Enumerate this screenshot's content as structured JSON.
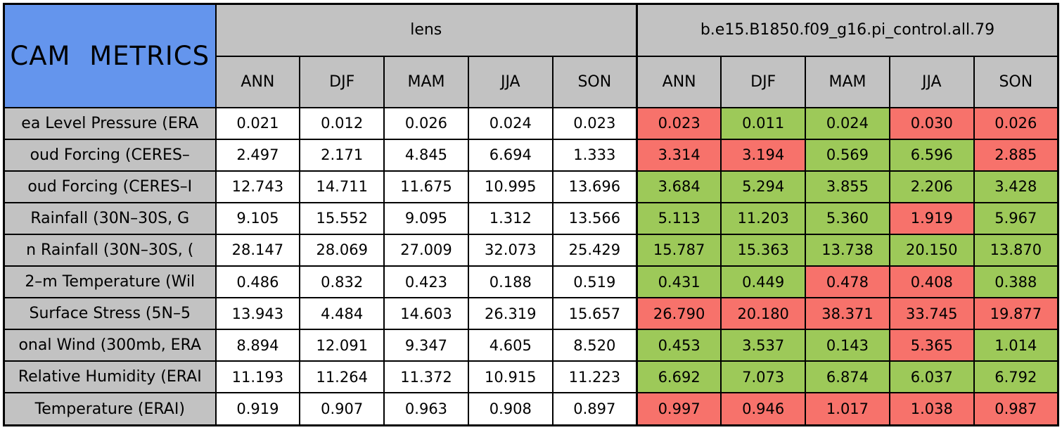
{
  "title": "CAM METRICS",
  "colors": {
    "title_bg": "#6495ED",
    "header_bg": "#C2C2C2",
    "neutral_bg": "#FFFFFF",
    "worse_bg": "#F7726B",
    "better_bg": "#9DC959",
    "border": "#000000"
  },
  "chart_data": {
    "type": "table",
    "title": "CAM METRICS",
    "column_groups": [
      {
        "label": "lens",
        "seasons": [
          "ANN",
          "DJF",
          "MAM",
          "JJA",
          "SON"
        ]
      },
      {
        "label": "b.e15.B1850.f09_g16.pi_control.all.79",
        "seasons": [
          "ANN",
          "DJF",
          "MAM",
          "JJA",
          "SON"
        ]
      }
    ],
    "value_format": "3-decimals",
    "cell_color_legend": {
      "better": "#9DC959",
      "worse": "#F7726B",
      "lens_reference": "#FFFFFF"
    },
    "rows": [
      {
        "label": "ea Level Pressure (ERA",
        "lens": [
          0.021,
          0.012,
          0.026,
          0.024,
          0.023
        ],
        "control": [
          0.023,
          0.011,
          0.024,
          0.03,
          0.026
        ],
        "control_status": [
          "worse",
          "better",
          "better",
          "worse",
          "worse"
        ]
      },
      {
        "label": "oud Forcing (CERES–",
        "lens": [
          2.497,
          2.171,
          4.845,
          6.694,
          1.333
        ],
        "control": [
          3.314,
          3.194,
          0.569,
          6.596,
          2.885
        ],
        "control_status": [
          "worse",
          "worse",
          "better",
          "better",
          "worse"
        ]
      },
      {
        "label": "oud Forcing (CERES–I",
        "lens": [
          12.743,
          14.711,
          11.675,
          10.995,
          13.696
        ],
        "control": [
          3.684,
          5.294,
          3.855,
          2.206,
          3.428
        ],
        "control_status": [
          "better",
          "better",
          "better",
          "better",
          "better"
        ]
      },
      {
        "label": "Rainfall (30N–30S, G",
        "lens": [
          9.105,
          15.552,
          9.095,
          1.312,
          13.566
        ],
        "control": [
          5.113,
          11.203,
          5.36,
          1.919,
          5.967
        ],
        "control_status": [
          "better",
          "better",
          "better",
          "worse",
          "better"
        ]
      },
      {
        "label": "n Rainfall (30N–30S, (",
        "lens": [
          28.147,
          28.069,
          27.009,
          32.073,
          25.429
        ],
        "control": [
          15.787,
          15.363,
          13.738,
          20.15,
          13.87
        ],
        "control_status": [
          "better",
          "better",
          "better",
          "better",
          "better"
        ]
      },
      {
        "label": "2–m Temperature (Wil",
        "lens": [
          0.486,
          0.832,
          0.423,
          0.188,
          0.519
        ],
        "control": [
          0.431,
          0.449,
          0.478,
          0.408,
          0.388
        ],
        "control_status": [
          "better",
          "better",
          "worse",
          "worse",
          "better"
        ]
      },
      {
        "label": "Surface Stress (5N–5",
        "lens": [
          13.943,
          4.484,
          14.603,
          26.319,
          15.657
        ],
        "control": [
          26.79,
          20.18,
          38.371,
          33.745,
          19.877
        ],
        "control_status": [
          "worse",
          "worse",
          "worse",
          "worse",
          "worse"
        ]
      },
      {
        "label": "onal Wind (300mb, ERA",
        "lens": [
          8.894,
          12.091,
          9.347,
          4.605,
          8.52
        ],
        "control": [
          0.453,
          3.537,
          0.143,
          5.365,
          1.014
        ],
        "control_status": [
          "better",
          "better",
          "better",
          "worse",
          "better"
        ]
      },
      {
        "label": "Relative Humidity (ERAI",
        "lens": [
          11.193,
          11.264,
          11.372,
          10.915,
          11.223
        ],
        "control": [
          6.692,
          7.073,
          6.874,
          6.037,
          6.792
        ],
        "control_status": [
          "better",
          "better",
          "better",
          "better",
          "better"
        ]
      },
      {
        "label": "Temperature (ERAI)",
        "lens": [
          0.919,
          0.907,
          0.963,
          0.908,
          0.897
        ],
        "control": [
          0.997,
          0.946,
          1.017,
          1.038,
          0.987
        ],
        "control_status": [
          "worse",
          "worse",
          "worse",
          "worse",
          "worse"
        ]
      }
    ]
  }
}
